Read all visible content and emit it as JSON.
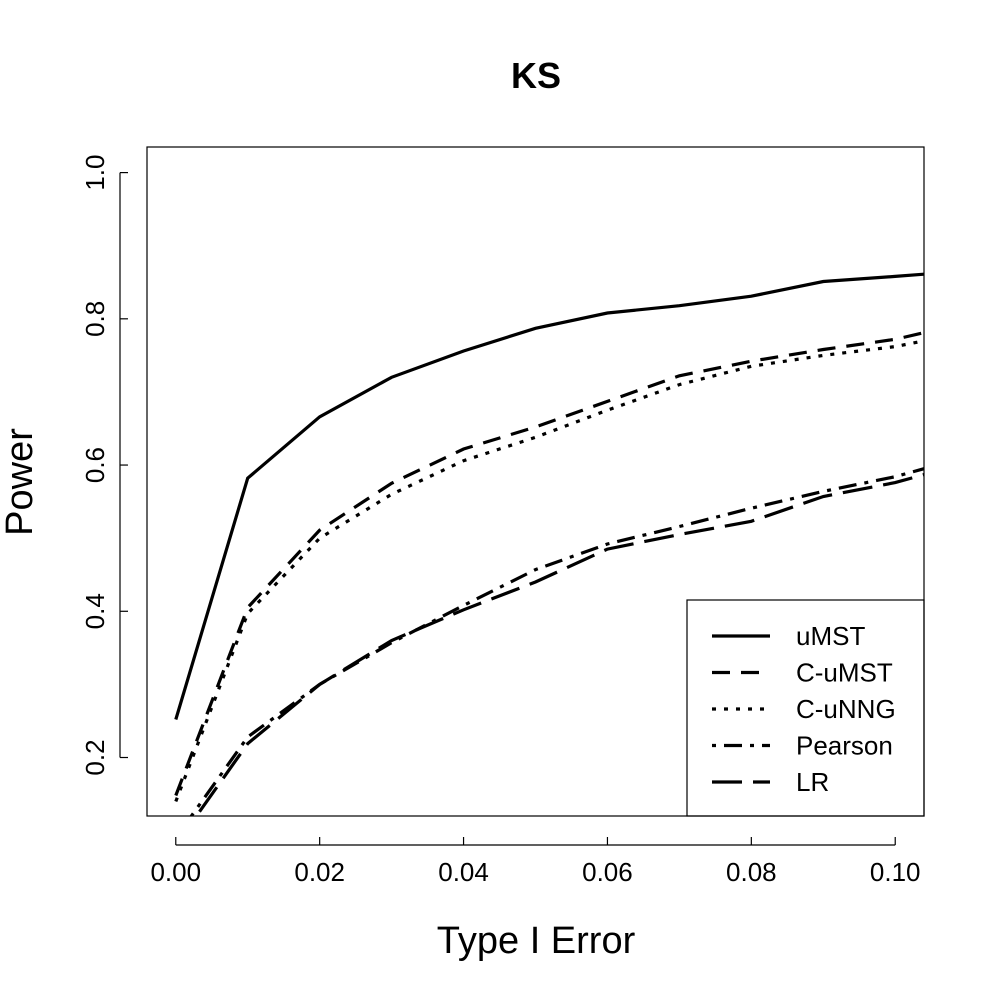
{
  "chart_data": {
    "type": "line",
    "title": "KS",
    "xlabel": "Type I Error",
    "ylabel": "Power",
    "xlim": [
      -0.004,
      0.104
    ],
    "ylim": [
      0.12,
      1.035
    ],
    "xticks": [
      0.0,
      0.02,
      0.04,
      0.06,
      0.08,
      0.1
    ],
    "xtick_labels": [
      "0.00",
      "0.02",
      "0.04",
      "0.06",
      "0.08",
      "0.10"
    ],
    "yticks": [
      0.2,
      0.4,
      0.6,
      0.8,
      1.0
    ],
    "ytick_labels": [
      "0.2",
      "0.4",
      "0.6",
      "0.8",
      "1.0"
    ],
    "grid": false,
    "legend_position": "bottom-right",
    "x": [
      0.0,
      0.01,
      0.02,
      0.03,
      0.04,
      0.05,
      0.06,
      0.07,
      0.08,
      0.09,
      0.1,
      0.104
    ],
    "series": [
      {
        "name": "uMST",
        "dash": "solid",
        "values": [
          0.252,
          0.582,
          0.666,
          0.72,
          0.756,
          0.787,
          0.808,
          0.818,
          0.831,
          0.851,
          0.858,
          0.861
        ]
      },
      {
        "name": "C-uMST",
        "dash": "dashed",
        "values": [
          0.148,
          0.405,
          0.511,
          0.575,
          0.622,
          0.652,
          0.687,
          0.722,
          0.742,
          0.758,
          0.772,
          0.781
        ]
      },
      {
        "name": "C-uNNG",
        "dash": "dotted",
        "values": [
          0.14,
          0.397,
          0.5,
          0.56,
          0.606,
          0.638,
          0.675,
          0.71,
          0.735,
          0.75,
          0.762,
          0.77
        ]
      },
      {
        "name": "Pearson",
        "dash": "dotdash",
        "values": [
          0.09,
          0.228,
          0.3,
          0.357,
          0.408,
          0.457,
          0.492,
          0.516,
          0.541,
          0.564,
          0.584,
          0.595
        ]
      },
      {
        "name": "LR",
        "dash": "longdash",
        "values": [
          0.08,
          0.219,
          0.3,
          0.36,
          0.402,
          0.44,
          0.485,
          0.505,
          0.523,
          0.557,
          0.576,
          0.587
        ]
      }
    ]
  }
}
